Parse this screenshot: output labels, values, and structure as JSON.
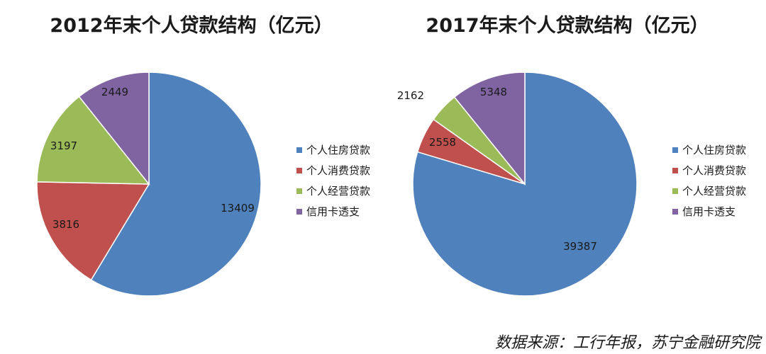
{
  "colors": {
    "housing": "#4f81bd",
    "consumer": "#c0504d",
    "business": "#9bbb59",
    "credit": "#8064a2"
  },
  "chart_data": [
    {
      "type": "pie",
      "title": "2012年末个人贷款结构（亿元）",
      "categories": [
        "个人住房贷款",
        "个人消费贷款",
        "个人经营贷款",
        "信用卡透支"
      ],
      "values": [
        13409,
        3816,
        3197,
        2449
      ],
      "legend_position": "right"
    },
    {
      "type": "pie",
      "title": "2017年末个人贷款结构（亿元）",
      "categories": [
        "个人住房贷款",
        "个人消费贷款",
        "个人经营贷款",
        "信用卡透支"
      ],
      "values": [
        39387,
        2558,
        2162,
        5348
      ],
      "legend_position": "right"
    }
  ],
  "footer": {
    "source": "数据来源：工行年报，苏宁金融研究院"
  }
}
